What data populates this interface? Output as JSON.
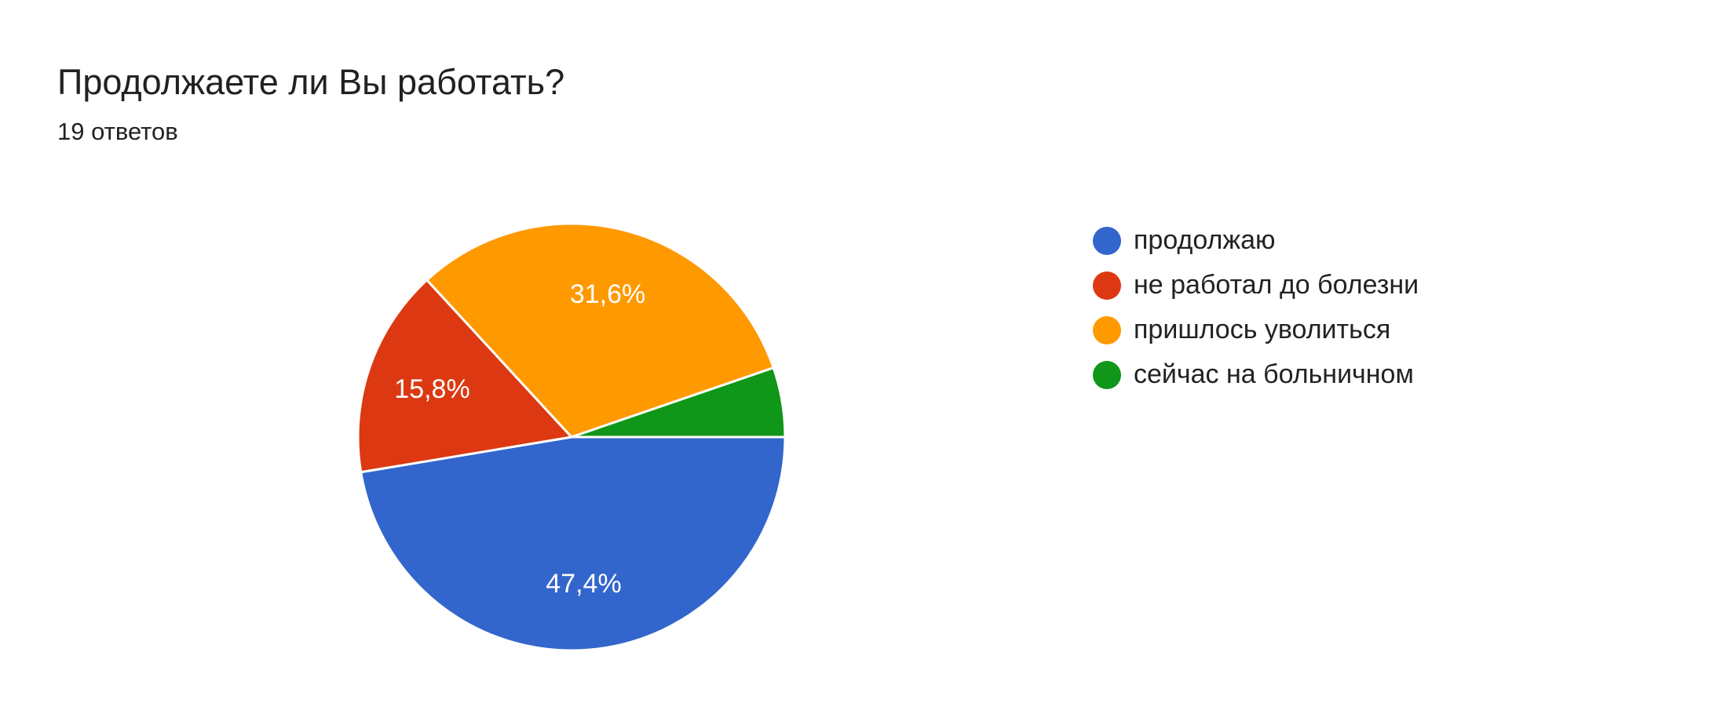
{
  "question": {
    "title": "Продолжаете ли Вы работать?",
    "responses_label": "19 ответов"
  },
  "chart_data": {
    "type": "pie",
    "title": "Продолжаете ли Вы работать?",
    "total_responses": 19,
    "slices": [
      {
        "label": "продолжаю",
        "value": 9,
        "percent": 47.4,
        "percent_label": "47,4%",
        "color": "#3366cc"
      },
      {
        "label": "не работал до болезни",
        "value": 3,
        "percent": 15.8,
        "percent_label": "15,8%",
        "color": "#dc3912"
      },
      {
        "label": "пришлось уволиться",
        "value": 6,
        "percent": 31.6,
        "percent_label": "31,6%",
        "color": "#ff9900"
      },
      {
        "label": "сейчас на больничном",
        "value": 1,
        "percent": 5.3,
        "percent_label": "",
        "color": "#109618"
      }
    ],
    "legend_position": "right"
  }
}
